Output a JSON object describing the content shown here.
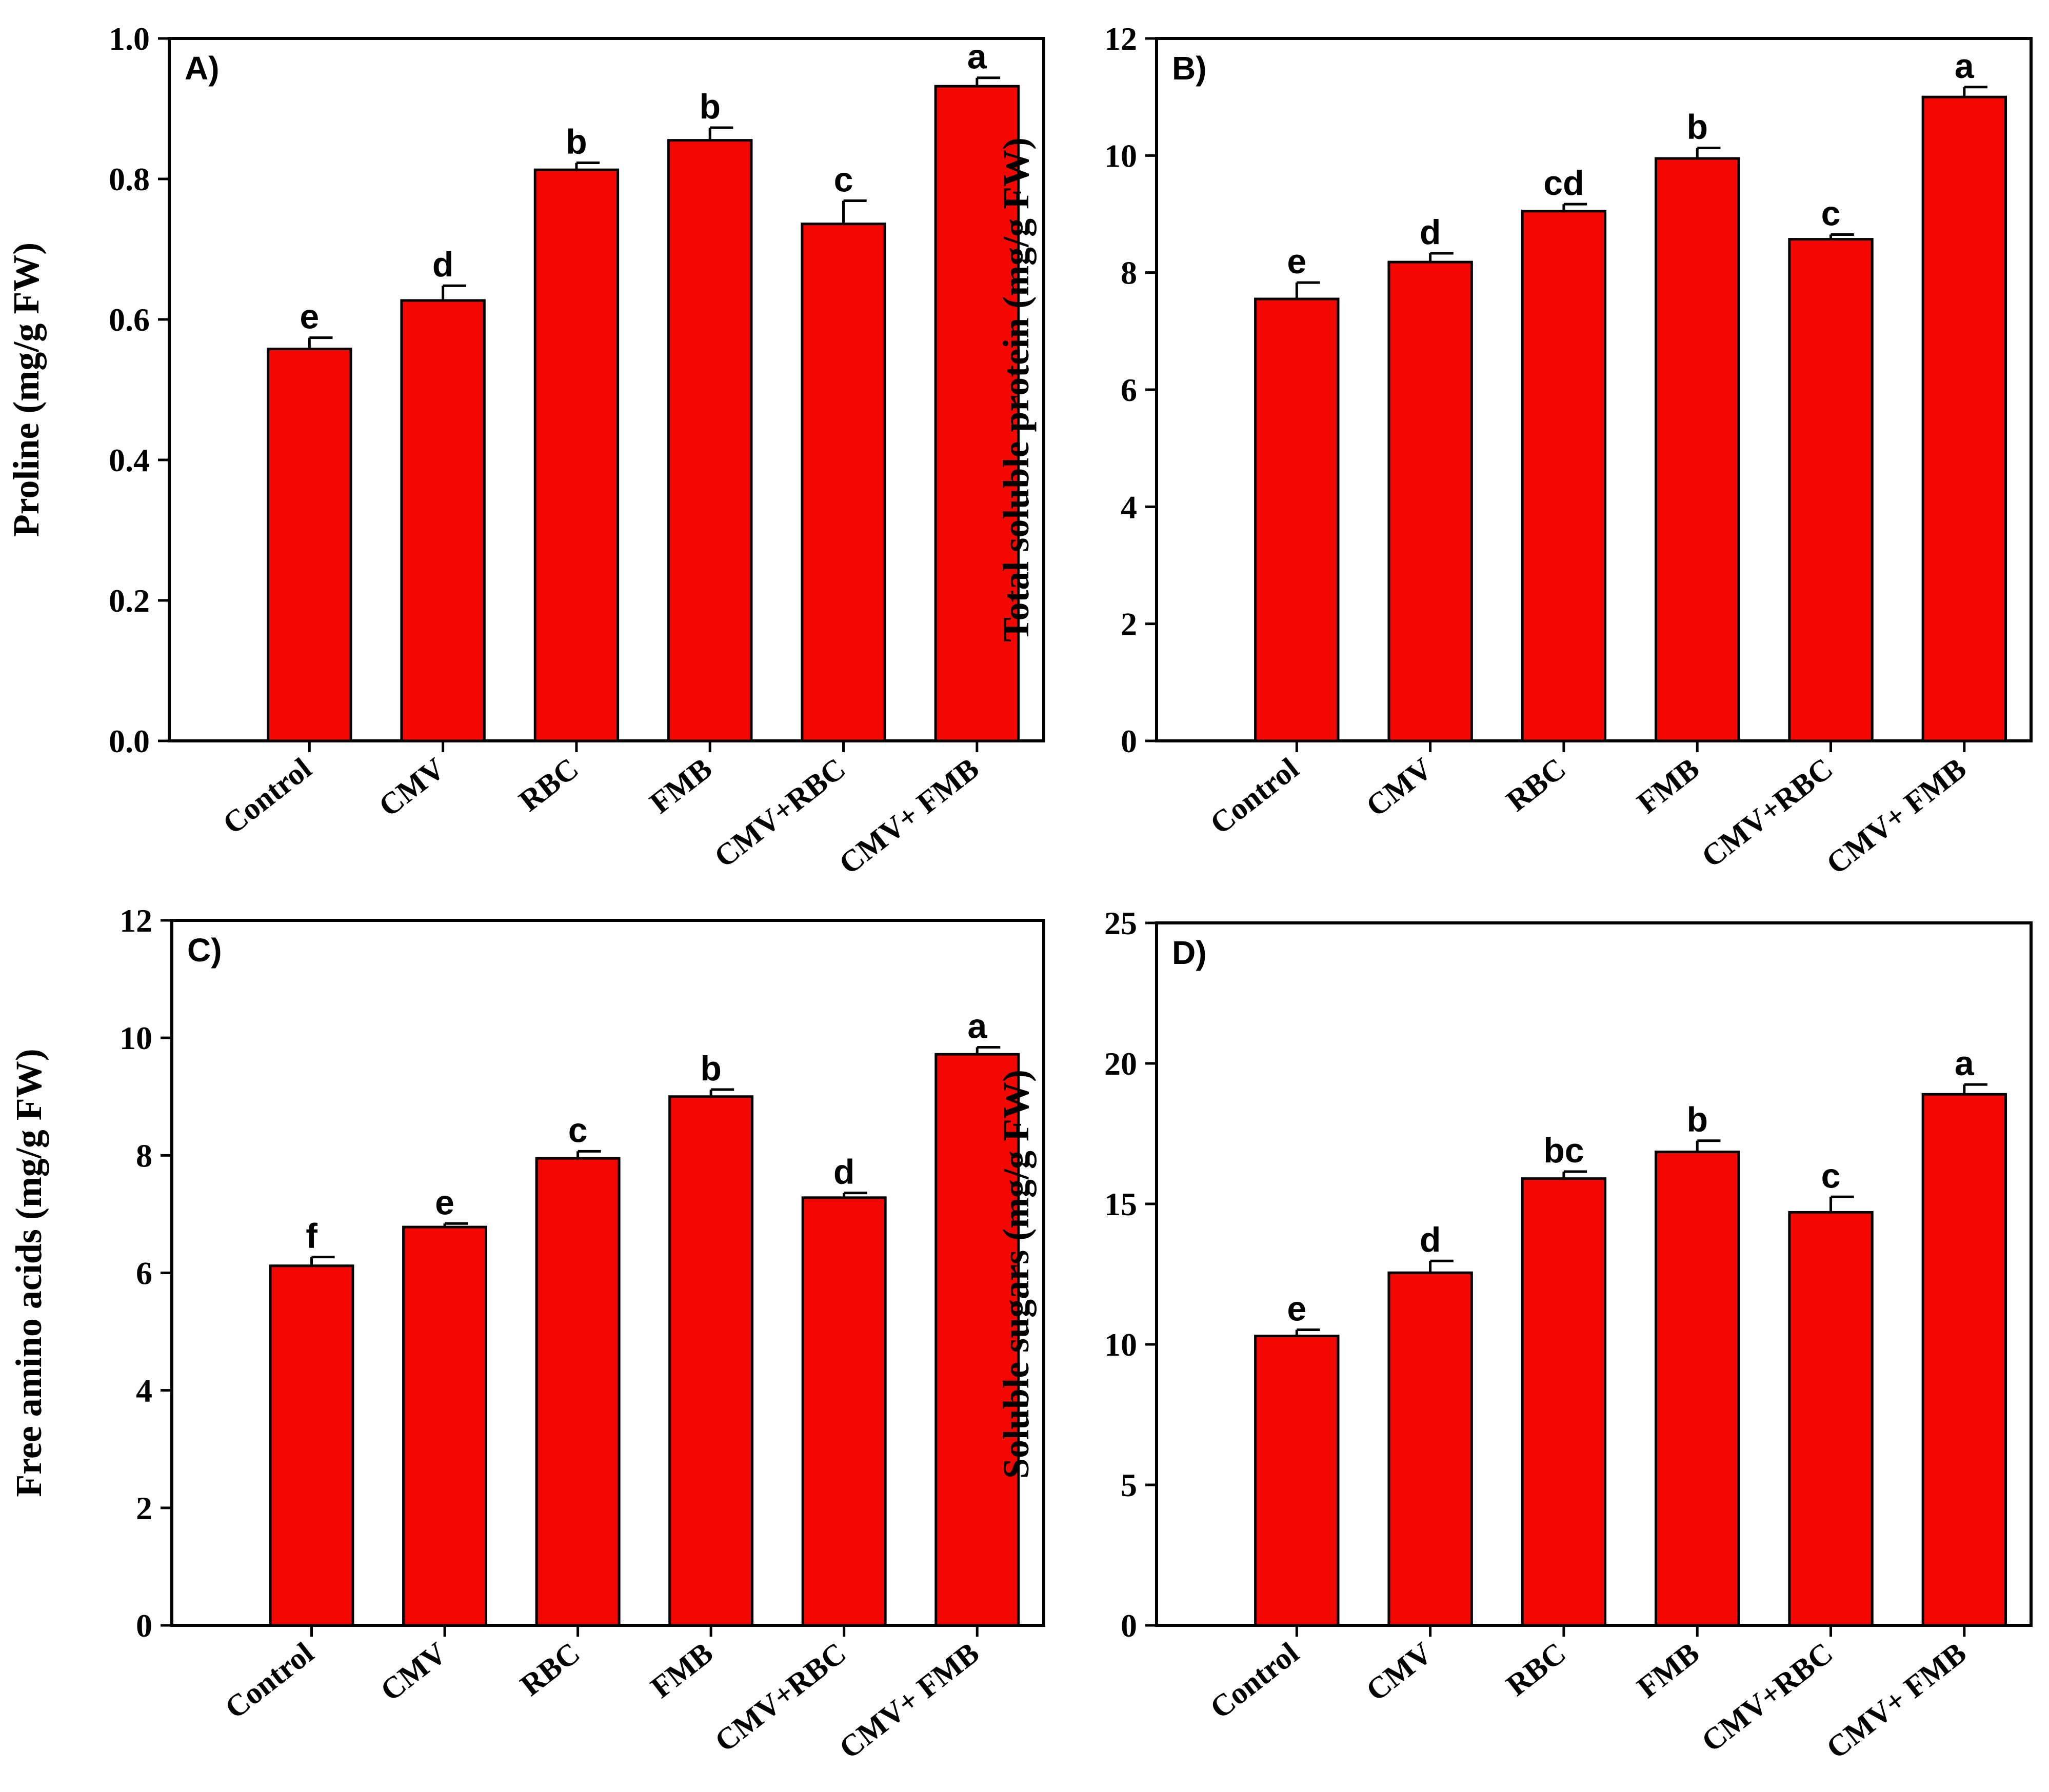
{
  "colors": {
    "bar": "#f20800",
    "axis": "#000000",
    "background": "#ffffff"
  },
  "chart_data": [
    {
      "type": "bar",
      "panel_label": "A)",
      "ylabel": "Proline (mg/g FW)",
      "categories": [
        "Control",
        "CMV",
        "RBC",
        "FMB",
        "CMV+RBC",
        "CMV+ FMB"
      ],
      "values": [
        0.558,
        0.627,
        0.813,
        0.855,
        0.736,
        0.932
      ],
      "errors": [
        0.016,
        0.021,
        0.01,
        0.018,
        0.033,
        0.012
      ],
      "significance": [
        "e",
        "d",
        "b",
        "b",
        "c",
        "a"
      ],
      "ylim": [
        0,
        1.0
      ],
      "yticks": [
        0,
        0.2,
        0.4,
        0.6,
        0.8,
        1.0
      ],
      "ytick_labels": [
        "0.0",
        "0.2",
        "0.4",
        "0.6",
        "0.8",
        "1.0"
      ]
    },
    {
      "type": "bar",
      "panel_label": "B)",
      "ylabel": "Total soluble protein (mg/g FW)",
      "categories": [
        "Control",
        "CMV",
        "RBC",
        "FMB",
        "CMV+RBC",
        "CMV+ FMB"
      ],
      "values": [
        7.55,
        8.18,
        9.05,
        9.95,
        8.57,
        11.0
      ],
      "errors": [
        0.28,
        0.15,
        0.12,
        0.18,
        0.08,
        0.17
      ],
      "significance": [
        "e",
        "d",
        "cd",
        "b",
        "c",
        "a"
      ],
      "ylim": [
        0,
        12
      ],
      "yticks": [
        0,
        2,
        4,
        6,
        8,
        10,
        12
      ],
      "ytick_labels": [
        "0",
        "2",
        "4",
        "6",
        "8",
        "10",
        "12"
      ]
    },
    {
      "type": "bar",
      "panel_label": "C)",
      "ylabel": "Free amino acids (mg/g FW)",
      "categories": [
        "Control",
        "CMV",
        "RBC",
        "FMB",
        "CMV+RBC",
        "CMV+ FMB"
      ],
      "values": [
        6.12,
        6.78,
        7.95,
        9.0,
        7.28,
        9.72
      ],
      "errors": [
        0.15,
        0.06,
        0.12,
        0.12,
        0.08,
        0.12
      ],
      "significance": [
        "f",
        "e",
        "c",
        "b",
        "d",
        "a"
      ],
      "ylim": [
        0,
        12
      ],
      "yticks": [
        0,
        2,
        4,
        6,
        8,
        10,
        12
      ],
      "ytick_labels": [
        "0",
        "2",
        "4",
        "6",
        "8",
        "10",
        "12"
      ]
    },
    {
      "type": "bar",
      "panel_label": "D)",
      "ylabel": "Soluble sugars (mg/g FW)",
      "categories": [
        "Control",
        "CMV",
        "RBC",
        "FMB",
        "CMV+RBC",
        "CMV+ FMB"
      ],
      "values": [
        10.3,
        12.55,
        15.9,
        16.85,
        14.7,
        18.9
      ],
      "errors": [
        0.22,
        0.42,
        0.25,
        0.4,
        0.55,
        0.35
      ],
      "significance": [
        "e",
        "d",
        "bc",
        "b",
        "c",
        "a"
      ],
      "ylim": [
        0,
        25
      ],
      "yticks": [
        0,
        5,
        10,
        15,
        20,
        25
      ],
      "ytick_labels": [
        "0",
        "5",
        "10",
        "15",
        "20",
        "25"
      ]
    }
  ]
}
